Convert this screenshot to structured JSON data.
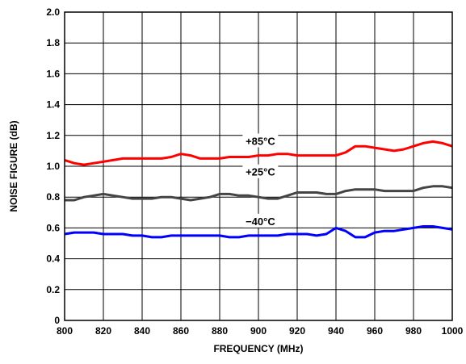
{
  "chart_data": {
    "type": "line",
    "xlabel": "FREQUENCY (MHz)",
    "ylabel": "NOISE FIGURE (dB)",
    "xlim": [
      800,
      1000
    ],
    "ylim": [
      0,
      2.0
    ],
    "x_ticks": [
      "800",
      "820",
      "840",
      "860",
      "880",
      "900",
      "920",
      "940",
      "960",
      "980",
      "1000"
    ],
    "y_ticks": [
      "0",
      "0.2",
      "0.4",
      "0.6",
      "0.8",
      "1.0",
      "1.2",
      "1.4",
      "1.6",
      "1.8",
      "2.0"
    ],
    "grid": true,
    "x": [
      800,
      805,
      810,
      815,
      820,
      825,
      830,
      835,
      840,
      845,
      850,
      855,
      860,
      865,
      870,
      875,
      880,
      885,
      890,
      895,
      900,
      905,
      910,
      915,
      920,
      925,
      930,
      935,
      940,
      945,
      950,
      955,
      960,
      965,
      970,
      975,
      980,
      985,
      990,
      995,
      1000
    ],
    "series": [
      {
        "name": "+85°C",
        "color": "#ff0000",
        "values": [
          1.04,
          1.02,
          1.01,
          1.02,
          1.03,
          1.04,
          1.05,
          1.05,
          1.05,
          1.05,
          1.05,
          1.06,
          1.08,
          1.07,
          1.05,
          1.05,
          1.05,
          1.06,
          1.06,
          1.06,
          1.07,
          1.07,
          1.08,
          1.08,
          1.07,
          1.07,
          1.07,
          1.07,
          1.07,
          1.09,
          1.13,
          1.13,
          1.12,
          1.11,
          1.1,
          1.11,
          1.13,
          1.15,
          1.16,
          1.15,
          1.13
        ]
      },
      {
        "name": "+25°C",
        "color": "#444444",
        "values": [
          0.78,
          0.78,
          0.8,
          0.81,
          0.82,
          0.81,
          0.8,
          0.79,
          0.79,
          0.79,
          0.8,
          0.8,
          0.79,
          0.78,
          0.79,
          0.8,
          0.82,
          0.82,
          0.81,
          0.81,
          0.8,
          0.79,
          0.79,
          0.81,
          0.83,
          0.83,
          0.83,
          0.82,
          0.82,
          0.84,
          0.85,
          0.85,
          0.85,
          0.84,
          0.84,
          0.84,
          0.84,
          0.86,
          0.87,
          0.87,
          0.86
        ]
      },
      {
        "name": "−40°C",
        "color": "#0000ff",
        "values": [
          0.56,
          0.57,
          0.57,
          0.57,
          0.56,
          0.56,
          0.56,
          0.55,
          0.55,
          0.54,
          0.54,
          0.55,
          0.55,
          0.55,
          0.55,
          0.55,
          0.55,
          0.54,
          0.54,
          0.55,
          0.55,
          0.55,
          0.55,
          0.56,
          0.56,
          0.56,
          0.55,
          0.56,
          0.6,
          0.58,
          0.54,
          0.54,
          0.57,
          0.58,
          0.58,
          0.59,
          0.6,
          0.61,
          0.61,
          0.6,
          0.59
        ]
      }
    ],
    "labels": {
      "hot": "+85°C",
      "room": "+25°C",
      "cold": "−40°C"
    }
  }
}
